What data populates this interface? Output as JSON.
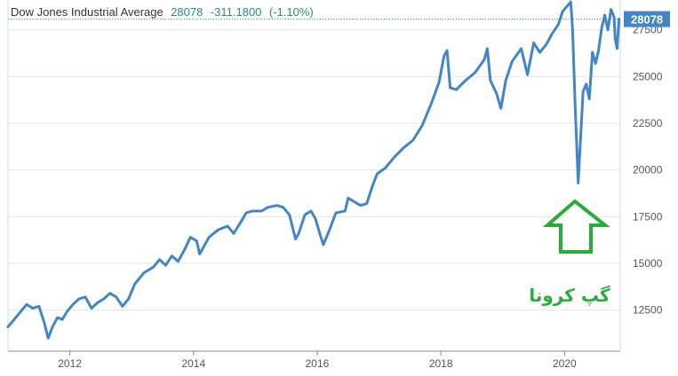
{
  "chart_data": {
    "type": "line",
    "title": "Dow Jones Industrial Average",
    "last_value": "28078",
    "change": "-311.1800",
    "change_pct": "(-1.10%)",
    "badge_label": "28078",
    "y_ticks": [
      12500,
      15000,
      17500,
      20000,
      22500,
      25000,
      27500
    ],
    "y_tick_labels": [
      "12500",
      "15000",
      "17500",
      "20000",
      "22500",
      "25000",
      "27500"
    ],
    "x_ticks": [
      2012,
      2014,
      2016,
      2018,
      2020
    ],
    "x_tick_labels": [
      "2012",
      "2014",
      "2016",
      "2018",
      "2020"
    ],
    "xlim": [
      2011.0,
      2020.9
    ],
    "ylim": [
      10300,
      29100
    ],
    "grid": true,
    "series": [
      {
        "x": [
          2011.0,
          2011.1,
          2011.2,
          2011.3,
          2011.4,
          2011.5,
          2011.58,
          2011.65,
          2011.72,
          2011.8,
          2011.88,
          2011.95,
          2012.05,
          2012.15,
          2012.25,
          2012.35,
          2012.45,
          2012.55,
          2012.65,
          2012.75,
          2012.85,
          2012.95,
          2013.05,
          2013.2,
          2013.35,
          2013.45,
          2013.55,
          2013.65,
          2013.75,
          2013.85,
          2013.95,
          2014.05,
          2014.1,
          2014.25,
          2014.4,
          2014.55,
          2014.65,
          2014.78,
          2014.85,
          2014.95,
          2015.1,
          2015.2,
          2015.35,
          2015.45,
          2015.55,
          2015.65,
          2015.7,
          2015.8,
          2015.9,
          2015.97,
          2016.05,
          2016.1,
          2016.2,
          2016.3,
          2016.45,
          2016.5,
          2016.6,
          2016.7,
          2016.8,
          2016.9,
          2016.97,
          2017.1,
          2017.25,
          2017.4,
          2017.55,
          2017.7,
          2017.85,
          2017.97,
          2018.05,
          2018.1,
          2018.15,
          2018.25,
          2018.4,
          2018.55,
          2018.7,
          2018.75,
          2018.8,
          2018.9,
          2018.97,
          2019.05,
          2019.15,
          2019.3,
          2019.4,
          2019.5,
          2019.6,
          2019.7,
          2019.8,
          2019.9,
          2019.97,
          2020.05,
          2020.1,
          2020.13,
          2020.17,
          2020.22,
          2020.25,
          2020.3,
          2020.35,
          2020.4,
          2020.45,
          2020.5,
          2020.55,
          2020.6,
          2020.65,
          2020.7,
          2020.75,
          2020.8,
          2020.82,
          2020.85,
          2020.88
        ],
        "values": [
          11600,
          12000,
          12400,
          12800,
          12600,
          12700,
          11900,
          11000,
          11600,
          12100,
          12000,
          12400,
          12800,
          13100,
          13200,
          12600,
          12900,
          13100,
          13400,
          13200,
          12700,
          13100,
          13900,
          14500,
          14800,
          15200,
          14900,
          15400,
          15100,
          15700,
          16400,
          16200,
          15500,
          16400,
          16800,
          17000,
          16600,
          17300,
          17700,
          17800,
          17800,
          18000,
          18100,
          18000,
          17600,
          16300,
          16600,
          17600,
          17800,
          17400,
          16500,
          16000,
          16800,
          17700,
          17800,
          18500,
          18300,
          18100,
          18200,
          19200,
          19800,
          20100,
          20700,
          21200,
          21600,
          22400,
          23600,
          24700,
          26100,
          26400,
          24400,
          24300,
          24800,
          25200,
          25900,
          26500,
          24800,
          24100,
          23300,
          24800,
          25800,
          26500,
          25100,
          26800,
          26300,
          26700,
          27300,
          27800,
          28500,
          28800,
          29000,
          27500,
          23500,
          19300,
          21200,
          24200,
          24600,
          23800,
          26300,
          25700,
          26400,
          27600,
          28300,
          27500,
          28600,
          28200,
          27000,
          26500,
          28078
        ]
      }
    ]
  },
  "annotation": {
    "text": "گپ کرونا",
    "color": "#27ae3a"
  },
  "colors": {
    "line": "#4286c8",
    "badge": "#4286c8",
    "change": "#2e8b7a",
    "arrow": "#27ae3a"
  }
}
